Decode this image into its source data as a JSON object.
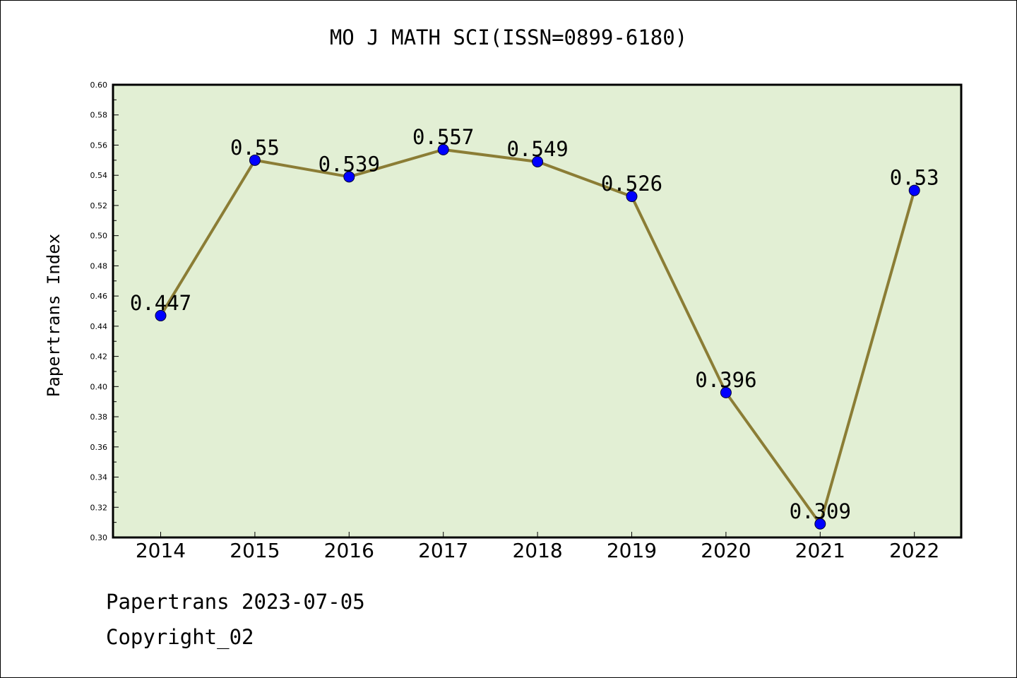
{
  "colors": {
    "plot_background": "#e2efd4",
    "line": "#8b7d35",
    "marker": "#0000ff",
    "axis": "#000000"
  },
  "footer": {
    "line1": "Papertrans 2023-07-05",
    "line2": "Copyright_02"
  },
  "chart_data": {
    "type": "line",
    "title": "MO J MATH SCI(ISSN=0899-6180)",
    "xlabel": "",
    "ylabel": "Papertrans Index",
    "categories": [
      "2014",
      "2015",
      "2016",
      "2017",
      "2018",
      "2019",
      "2020",
      "2021",
      "2022"
    ],
    "series": [
      {
        "values": [
          0.447,
          0.55,
          0.539,
          0.557,
          0.549,
          0.526,
          0.396,
          0.309,
          0.53
        ],
        "labels": [
          "0.447",
          "0.55",
          "0.539",
          "0.557",
          "0.549",
          "0.526",
          "0.396",
          "0.309",
          "0.53"
        ]
      }
    ],
    "ylim": [
      0.3,
      0.6
    ],
    "yticks": [
      "0.30",
      "0.32",
      "0.34",
      "0.36",
      "0.38",
      "0.40",
      "0.42",
      "0.44",
      "0.46",
      "0.48",
      "0.50",
      "0.52",
      "0.54",
      "0.56",
      "0.58",
      "0.60"
    ],
    "grid": false,
    "legend": "none"
  }
}
